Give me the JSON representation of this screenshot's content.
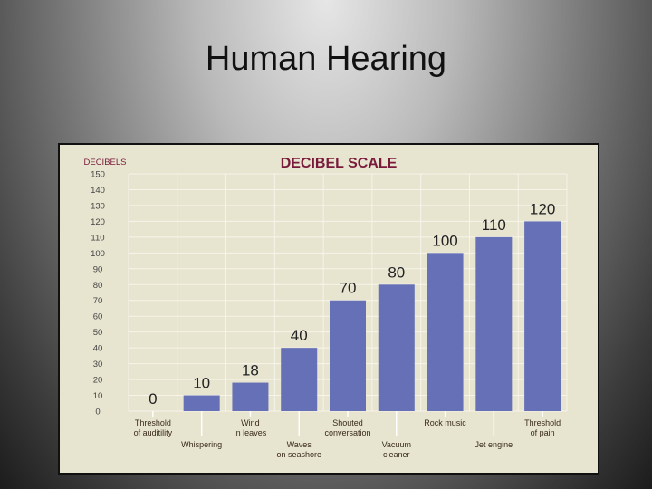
{
  "slide": {
    "title": "Human Hearing"
  },
  "chart_data": {
    "type": "bar",
    "title": "DECIBEL SCALE",
    "ylabel": "DECIBELS",
    "ylim": [
      0,
      150
    ],
    "yticks": [
      0,
      10,
      20,
      30,
      40,
      50,
      60,
      70,
      80,
      90,
      100,
      110,
      120,
      130,
      140,
      150
    ],
    "grid": true,
    "categories": [
      [
        "Threshold",
        "of auditility"
      ],
      [
        "Whispering"
      ],
      [
        "Wind",
        "in leaves"
      ],
      [
        "Waves",
        "on seashore"
      ],
      [
        "Shouted",
        "conversation"
      ],
      [
        "Vacuum",
        "cleaner"
      ],
      [
        "Rock music"
      ],
      [
        "Jet engine"
      ],
      [
        "Threshold",
        "of pain"
      ]
    ],
    "values": [
      0,
      10,
      18,
      40,
      70,
      80,
      100,
      110,
      120
    ],
    "bar_color": "#6670b6"
  }
}
